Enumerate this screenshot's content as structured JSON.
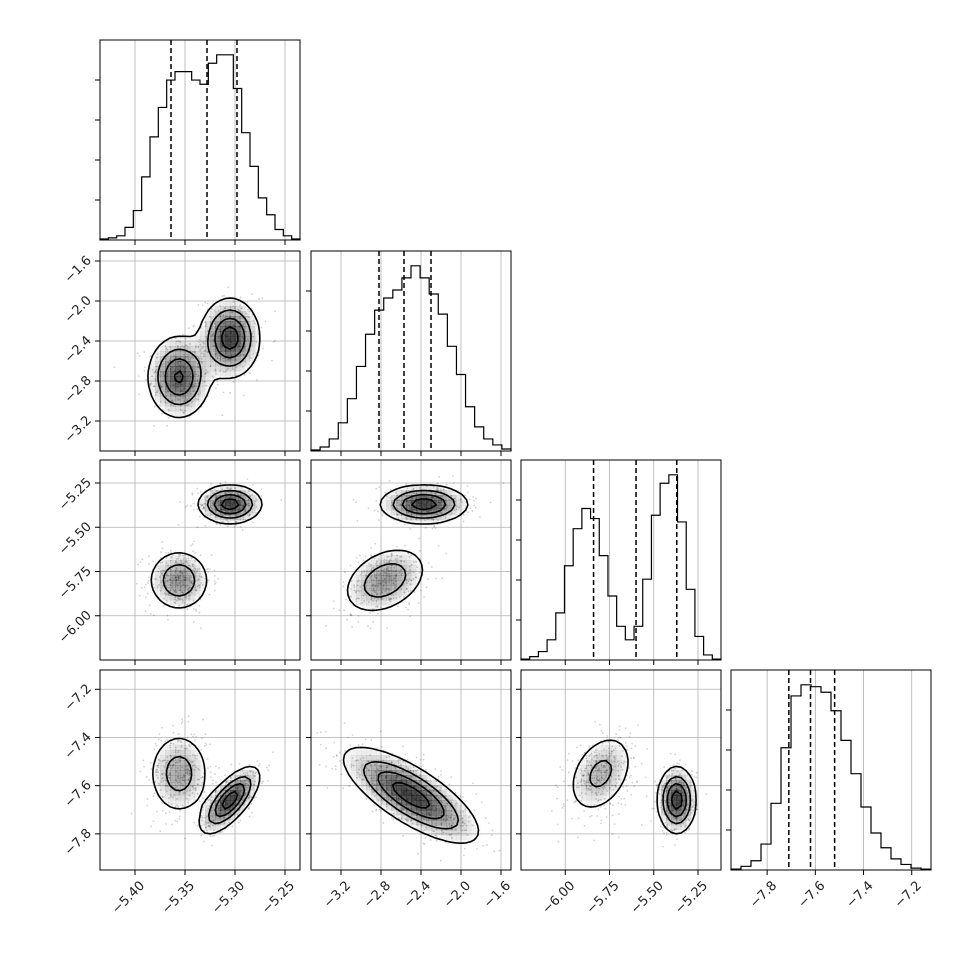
{
  "chart_data": {
    "type": "corner",
    "parameters": [
      {
        "index": 0,
        "range": [
          -5.435,
          -5.235
        ],
        "ticks": [
          -5.4,
          -5.35,
          -5.3,
          -5.25
        ],
        "tick_labels": [
          "−5.40",
          "−5.35",
          "−5.30",
          "−5.25"
        ],
        "quantiles": [
          -5.364,
          -5.328,
          -5.298
        ]
      },
      {
        "index": 1,
        "range": [
          -3.5,
          -1.5
        ],
        "ticks": [
          -3.2,
          -2.8,
          -2.4,
          -2.0,
          -1.6
        ],
        "tick_labels": [
          "−3.2",
          "−2.8",
          "−2.4",
          "−2.0",
          "−1.6"
        ],
        "quantiles": [
          -2.82,
          -2.57,
          -2.3
        ]
      },
      {
        "index": 2,
        "range": [
          -6.25,
          -5.12
        ],
        "ticks": [
          -6.0,
          -5.75,
          -5.5,
          -5.25
        ],
        "tick_labels": [
          "−6.00",
          "−5.75",
          "−5.50",
          "−5.25"
        ],
        "quantiles": [
          -5.84,
          -5.6,
          -5.37
        ]
      },
      {
        "index": 3,
        "range": [
          -7.95,
          -7.12
        ],
        "ticks": [
          -7.8,
          -7.6,
          -7.4,
          -7.2
        ],
        "tick_labels": [
          "−7.8",
          "−7.6",
          "−7.4",
          "−7.2"
        ],
        "quantiles": [
          -7.71,
          -7.62,
          -7.52
        ]
      }
    ],
    "histograms": [
      {
        "parameter": 0,
        "normalized_heights": [
          0.005,
          0.01,
          0.02,
          0.06,
          0.14,
          0.3,
          0.49,
          0.63,
          0.76,
          0.8,
          0.8,
          0.76,
          0.74,
          0.84,
          0.88,
          0.88,
          0.72,
          0.51,
          0.35,
          0.2,
          0.12,
          0.05,
          0.02,
          0.005
        ]
      },
      {
        "parameter": 1,
        "normalized_heights": [
          0.005,
          0.02,
          0.06,
          0.14,
          0.26,
          0.42,
          0.58,
          0.7,
          0.76,
          0.8,
          0.86,
          0.92,
          0.86,
          0.78,
          0.68,
          0.52,
          0.38,
          0.22,
          0.12,
          0.06,
          0.03,
          0.01
        ]
      },
      {
        "parameter": 2,
        "normalized_heights": [
          0.005,
          0.02,
          0.05,
          0.12,
          0.28,
          0.56,
          0.78,
          0.9,
          0.84,
          0.62,
          0.38,
          0.2,
          0.12,
          0.2,
          0.48,
          0.86,
          1.05,
          1.1,
          0.82,
          0.42,
          0.14,
          0.03,
          0.005
        ]
      },
      {
        "parameter": 3,
        "normalized_heights": [
          0.005,
          0.02,
          0.05,
          0.14,
          0.36,
          0.66,
          0.94,
          1.0,
          0.99,
          0.96,
          0.86,
          0.7,
          0.52,
          0.34,
          0.2,
          0.12,
          0.06,
          0.03,
          0.01,
          0.005
        ]
      }
    ],
    "joint_panels": [
      {
        "x": 0,
        "y": 1,
        "modes": [
          {
            "center": [
              -5.356,
              -2.76
            ],
            "sigma": [
              0.016,
              0.21
            ],
            "rho": 0.0,
            "weight": 0.5
          },
          {
            "center": [
              -5.305,
              -2.37
            ],
            "sigma": [
              0.015,
              0.2
            ],
            "rho": 0.0,
            "weight": 0.5
          }
        ]
      },
      {
        "x": 0,
        "y": 2,
        "modes": [
          {
            "center": [
              -5.356,
              -5.8
            ],
            "sigma": [
              0.016,
              0.09
            ],
            "rho": 0.0,
            "weight": 0.5
          },
          {
            "center": [
              -5.305,
              -5.37
            ],
            "sigma": [
              0.016,
              0.055
            ],
            "rho": 0.0,
            "weight": 0.5
          }
        ]
      },
      {
        "x": 0,
        "y": 3,
        "modes": [
          {
            "center": [
              -5.356,
              -7.55
            ],
            "sigma": [
              0.016,
              0.09
            ],
            "rho": 0.0,
            "weight": 0.5
          },
          {
            "center": [
              -5.305,
              -7.66
            ],
            "sigma": [
              0.015,
              0.07
            ],
            "rho": 0.7,
            "weight": 0.5
          }
        ]
      },
      {
        "x": 1,
        "y": 2,
        "modes": [
          {
            "center": [
              -2.76,
              -5.8
            ],
            "sigma": [
              0.22,
              0.1
            ],
            "rho": 0.35,
            "weight": 0.5
          },
          {
            "center": [
              -2.37,
              -5.37
            ],
            "sigma": [
              0.22,
              0.055
            ],
            "rho": 0.0,
            "weight": 0.5
          }
        ]
      },
      {
        "x": 1,
        "y": 3,
        "modes": [
          {
            "center": [
              -2.5,
              -7.64
            ],
            "sigma": [
              0.34,
              0.1
            ],
            "rho": -0.75,
            "weight": 1.0
          }
        ]
      },
      {
        "x": 2,
        "y": 3,
        "modes": [
          {
            "center": [
              -5.8,
              -7.55
            ],
            "sigma": [
              0.1,
              0.09
            ],
            "rho": 0.35,
            "weight": 0.5
          },
          {
            "center": [
              -5.37,
              -7.66
            ],
            "sigma": [
              0.055,
              0.07
            ],
            "rho": 0.0,
            "weight": 0.5
          }
        ]
      }
    ],
    "grid": true,
    "scatter_color": "#000000",
    "line_color": "#000000",
    "title": "",
    "xlabel": "",
    "ylabel": ""
  }
}
